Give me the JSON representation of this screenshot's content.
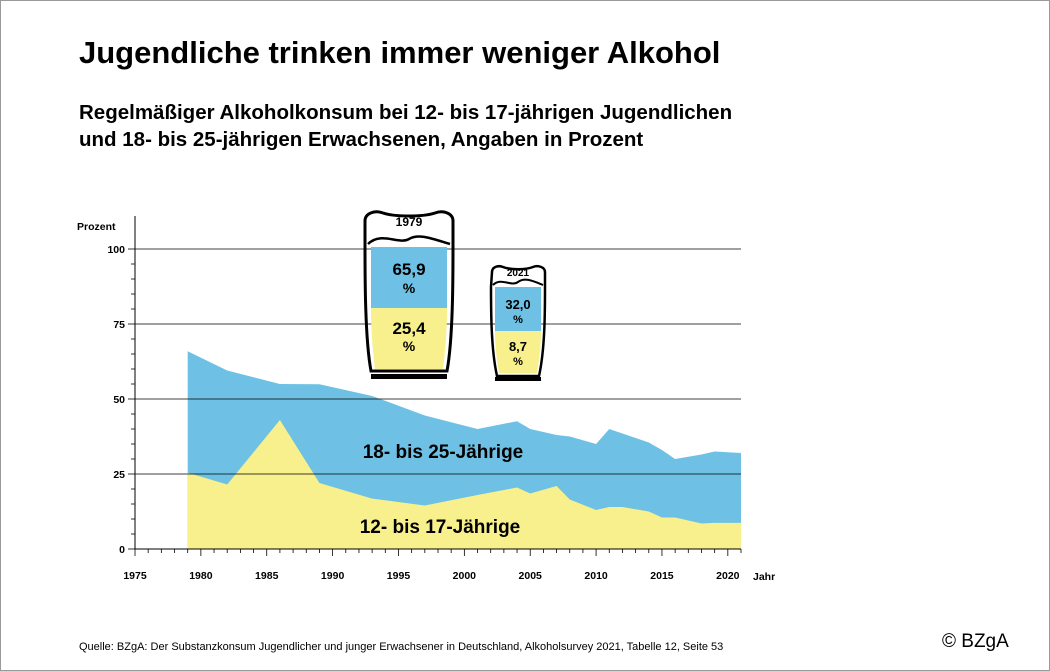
{
  "header": {
    "title": "Jugendliche trinken immer weniger Alkohol",
    "subtitle_line1": "Regelmäßiger Alkoholkonsum bei 12- bis 17-jährigen Jugendlichen",
    "subtitle_line2": "und 18- bis 25-jährigen Erwachsenen, Angaben in Prozent"
  },
  "footer": {
    "source": "Quelle: BZgA: Der Substanzkonsum Jugendlicher und junger Erwachsener in Deutschland, Alkoholsurvey 2021, Tabelle 12, Seite 53",
    "copyright": "© BZgA"
  },
  "colors": {
    "adults": "#6ec1e4",
    "youth": "#f8f08c",
    "gridline": "#000000"
  },
  "chart_data": {
    "type": "area",
    "ylabel": "Prozent",
    "xlabel": "Jahr",
    "ylim": [
      0,
      100
    ],
    "xlim": [
      1975,
      2021
    ],
    "yticks": [
      0,
      25,
      50,
      75,
      100
    ],
    "xticks": [
      1975,
      1980,
      1985,
      1990,
      1995,
      2000,
      2005,
      2010,
      2015,
      2020
    ],
    "grid": "horizontal",
    "series": [
      {
        "name": "18- bis 25-Jährige",
        "color": "#6ec1e4",
        "x": [
          1979,
          1982,
          1986,
          1989,
          1993,
          1997,
          2001,
          2004,
          2005,
          2007,
          2008,
          2010,
          2011,
          2012,
          2014,
          2015,
          2016,
          2018,
          2019,
          2021
        ],
        "values": [
          65.9,
          59.5,
          55.0,
          54.9,
          51.0,
          44.5,
          40.0,
          42.6,
          40.0,
          38.0,
          37.5,
          35.0,
          40.0,
          38.5,
          35.5,
          33.0,
          30.0,
          31.5,
          32.5,
          32.0
        ]
      },
      {
        "name": "12- bis 17-Jährige",
        "color": "#f8f08c",
        "x": [
          1979,
          1982,
          1986,
          1989,
          1993,
          1997,
          2001,
          2004,
          2005,
          2007,
          2008,
          2010,
          2011,
          2012,
          2014,
          2015,
          2016,
          2018,
          2019,
          2021
        ],
        "values": [
          25.4,
          21.5,
          43.0,
          22.0,
          16.8,
          14.5,
          18.0,
          20.5,
          18.5,
          21.0,
          16.5,
          13.0,
          14.0,
          14.0,
          12.5,
          10.5,
          10.5,
          8.5,
          8.7,
          8.7
        ]
      }
    ],
    "glasses": [
      {
        "year": "1979",
        "adults": "65,9",
        "youth": "25,4",
        "unit": "%"
      },
      {
        "year": "2021",
        "adults": "32,0",
        "youth": "8,7",
        "unit": "%"
      }
    ]
  }
}
